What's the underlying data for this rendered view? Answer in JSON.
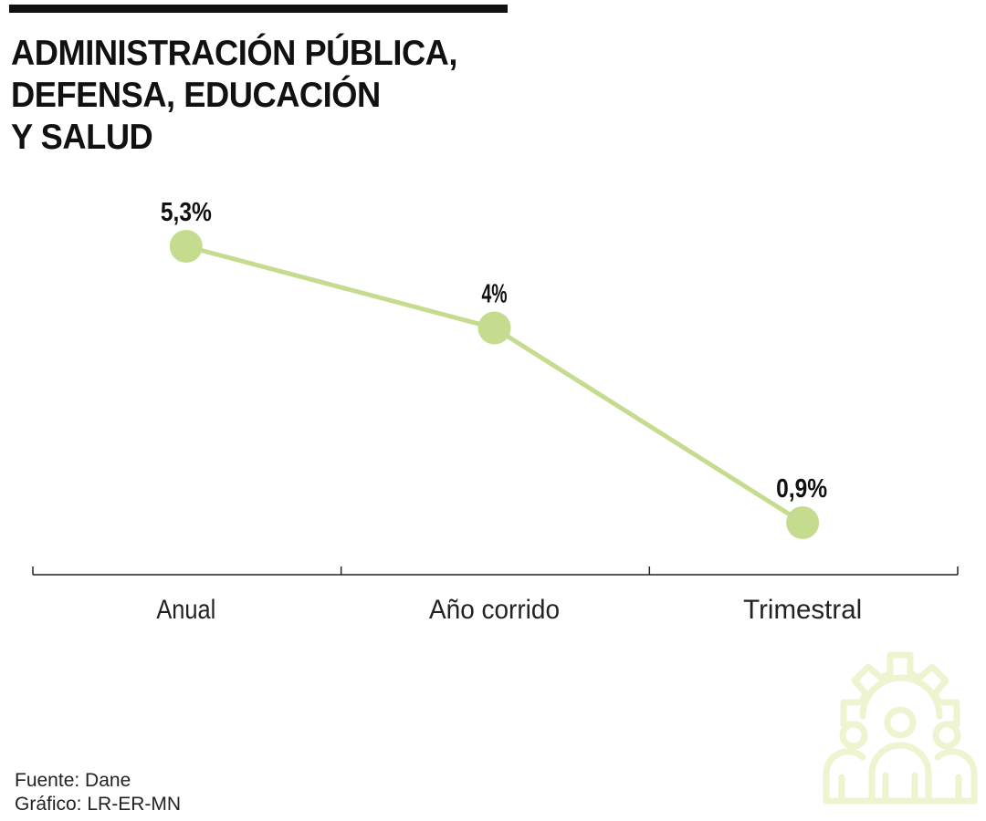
{
  "title_lines": [
    "ADMINISTRACIÓN PÚBLICA,",
    "DEFENSA, EDUCACIÓN",
    "Y SALUD"
  ],
  "source": "Fuente: Dane",
  "credit": "Gráfico: LR-ER-MN",
  "icon": "people-gear-icon",
  "colors": {
    "line": "#c5dc8f",
    "marker": "#c5dc8f",
    "icon": "#eef3d0",
    "text": "#111111"
  },
  "chart_data": {
    "type": "line",
    "title": "ADMINISTRACIÓN PÚBLICA, DEFENSA, EDUCACIÓN Y SALUD",
    "categories": [
      "Anual",
      "Año corrido",
      "Trimestral"
    ],
    "values": [
      5.3,
      4.0,
      0.9
    ],
    "data_labels": [
      "5,3%",
      "4%",
      "0,9%"
    ],
    "xlabel": "",
    "ylabel": "",
    "ylim": [
      0,
      5.3
    ],
    "grid": false
  }
}
